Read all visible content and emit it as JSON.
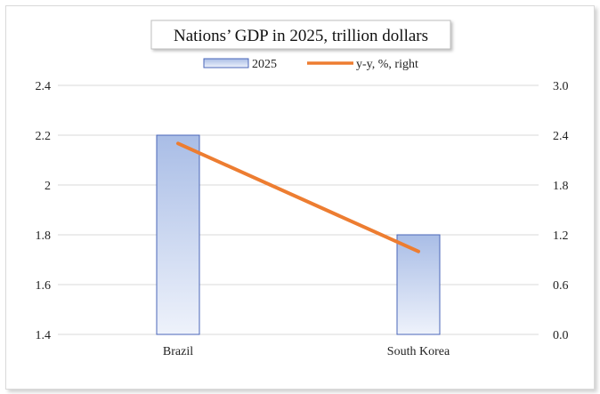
{
  "chart_data": {
    "type": "bar",
    "title": "Nations’ GDP in 2025, trillion dollars",
    "categories": [
      "Brazil",
      "South Korea"
    ],
    "series": [
      {
        "name": "2025",
        "type": "bar",
        "axis": "left",
        "values": [
          2.2,
          1.8
        ]
      },
      {
        "name": "y-y, %, right",
        "type": "line",
        "axis": "right",
        "values": [
          2.3,
          1.0
        ]
      }
    ],
    "ylim": [
      1.4,
      2.4
    ],
    "yticks": [
      "1.4",
      "1.6",
      "1.8",
      "2",
      "2.2",
      "2.4"
    ],
    "y2lim": [
      0.0,
      3.0
    ],
    "y2ticks": [
      "0.0",
      "0.6",
      "1.2",
      "1.8",
      "2.4",
      "3.0"
    ],
    "xlabel": "",
    "ylabel": "",
    "grid": true,
    "legend": "top-center",
    "colors": {
      "bar_fill_top": "#a9bde6",
      "bar_fill_bottom": "#eef2fb",
      "bar_stroke": "#4a66b8",
      "line": "#ed7d31",
      "grid": "#d9d9d9"
    }
  }
}
